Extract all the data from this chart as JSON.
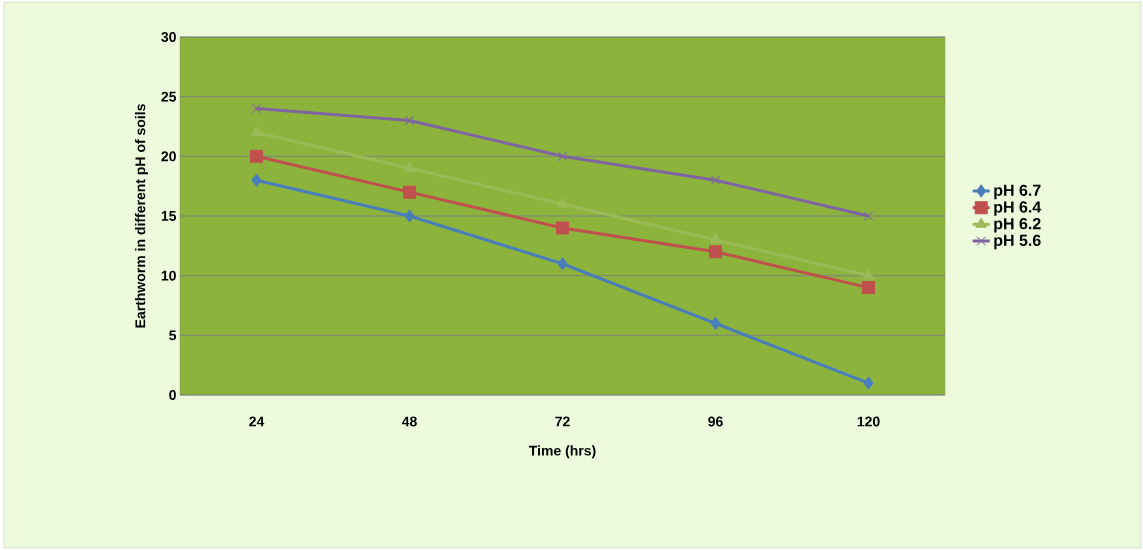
{
  "chart_data": {
    "type": "line",
    "xlabel": "Time (hrs)",
    "ylabel": "Earthworm in different pH of soils",
    "categories": [
      "24",
      "48",
      "72",
      "96",
      "120"
    ],
    "ylim": [
      0,
      30
    ],
    "yticks": [
      0,
      5,
      10,
      15,
      20,
      25,
      30
    ],
    "grid": "y",
    "legend": "right",
    "series": [
      {
        "name": "pH  6.7",
        "color": "#4a7ebb",
        "marker": "diamond",
        "values": [
          18,
          15,
          11,
          6,
          1
        ]
      },
      {
        "name": "pH 6.4",
        "color": "#c0504d",
        "marker": "square",
        "values": [
          20,
          17,
          14,
          12,
          9
        ]
      },
      {
        "name": "pH 6.2",
        "color": "#9bbb59",
        "marker": "triangle",
        "values": [
          22,
          19,
          16,
          13,
          10
        ]
      },
      {
        "name": "pH 5.6",
        "color": "#8064a2",
        "marker": "cross",
        "values": [
          24,
          23,
          20,
          18,
          15
        ]
      }
    ]
  }
}
